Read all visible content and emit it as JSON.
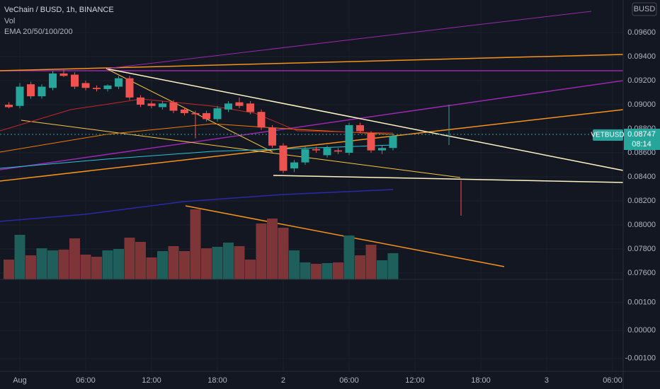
{
  "chart_data": {
    "type": "candlestick",
    "title": "VeChain / BUSD, 1h, BINANCE",
    "legend_lines": [
      "Vol",
      "EMA 20/50/100/200"
    ],
    "currency_label": "BUSD",
    "price_tag": {
      "symbol": "VETBUSD",
      "price": {
        "value": 0.08747,
        "label": "0.08747"
      },
      "countdown": "08:14"
    },
    "up_color": "#26a69a",
    "down_color": "#ef5350",
    "volume_up_color": "#1f5f5b",
    "volume_down_color": "#7d3538",
    "x": [
      -1,
      0,
      1,
      2,
      3,
      4,
      5,
      6,
      7,
      8,
      9,
      10,
      11,
      12,
      13,
      14,
      15,
      16,
      17,
      18,
      19,
      20,
      21,
      22,
      23,
      24,
      25,
      26,
      27,
      28,
      29,
      30,
      31,
      32,
      33,
      34
    ],
    "open": [
      0.09,
      0.0899,
      0.0917,
      0.0907,
      0.0914,
      0.0926,
      0.0925,
      0.0918,
      0.0914,
      0.0913,
      0.0915,
      0.0922,
      0.0906,
      0.0901,
      0.0898,
      0.0902,
      0.0896,
      0.0893,
      0.0893,
      0.0888,
      0.0896,
      0.0902,
      0.0901,
      0.0894,
      0.0881,
      0.0866,
      0.0847,
      0.0852,
      0.0863,
      0.0858,
      0.0862,
      0.086,
      0.0883,
      0.0876,
      0.0862,
      0.0864
    ],
    "high": [
      0.0902,
      0.0918,
      0.0919,
      0.0917,
      0.0928,
      0.0929,
      0.0927,
      0.092,
      0.0916,
      0.0917,
      0.0924,
      0.0924,
      0.0908,
      0.0903,
      0.0903,
      0.0904,
      0.0898,
      0.0895,
      0.0895,
      0.0899,
      0.0903,
      0.0906,
      0.0903,
      0.0896,
      0.0883,
      0.0868,
      0.0854,
      0.0865,
      0.0865,
      0.0866,
      0.0864,
      0.0885,
      0.0885,
      0.0878,
      0.0866,
      0.0876
    ],
    "low": [
      0.0897,
      0.0897,
      0.0905,
      0.0905,
      0.0912,
      0.0923,
      0.0913,
      0.0912,
      0.0911,
      0.0911,
      0.0913,
      0.0904,
      0.0898,
      0.0897,
      0.0896,
      0.0893,
      0.0891,
      0.0872,
      0.0886,
      0.0886,
      0.0894,
      0.0897,
      0.0892,
      0.0879,
      0.0864,
      0.0843,
      0.0844,
      0.085,
      0.086,
      0.0856,
      0.0859,
      0.0858,
      0.0876,
      0.086,
      0.0859,
      0.0862
    ],
    "close": [
      0.0898,
      0.0915,
      0.0907,
      0.0915,
      0.0926,
      0.0924,
      0.0915,
      0.0914,
      0.0913,
      0.0916,
      0.0922,
      0.0906,
      0.09,
      0.0899,
      0.0901,
      0.0895,
      0.0893,
      0.0892,
      0.0888,
      0.0897,
      0.0901,
      0.0899,
      0.0894,
      0.0881,
      0.0866,
      0.0845,
      0.0852,
      0.0863,
      0.0862,
      0.0864,
      0.0861,
      0.0883,
      0.0878,
      0.0862,
      0.0864,
      0.0874
    ],
    "volume": [
      28,
      63,
      34,
      44,
      41,
      42,
      58,
      35,
      32,
      41,
      43,
      59,
      53,
      31,
      40,
      47,
      40,
      99,
      44,
      46,
      52,
      47,
      28,
      79,
      86,
      73,
      41,
      24,
      22,
      23,
      24,
      62,
      34,
      49,
      27,
      37
    ],
    "vlim": [
      0,
      125
    ],
    "xlim": [
      -1.806,
      54.97
    ],
    "xticks": [
      {
        "value": 0,
        "label": "Aug"
      },
      {
        "value": 6,
        "label": "06:00"
      },
      {
        "value": 12,
        "label": "12:00"
      },
      {
        "value": 18,
        "label": "18:00"
      },
      {
        "value": 24,
        "label": "2"
      },
      {
        "value": 30,
        "label": "06:00"
      },
      {
        "value": 36,
        "label": "12:00"
      },
      {
        "value": 42,
        "label": "18:00"
      },
      {
        "value": 48,
        "label": "3"
      },
      {
        "value": 54,
        "label": "06:00"
      }
    ],
    "ylim": [
      0.07547,
      0.09871
    ],
    "yticks": [
      {
        "value": 0.096,
        "label": "0.09600"
      },
      {
        "value": 0.094,
        "label": "0.09400"
      },
      {
        "value": 0.092,
        "label": "0.09200"
      },
      {
        "value": 0.09,
        "label": "0.09000"
      },
      {
        "value": 0.088,
        "label": "0.08800"
      },
      {
        "value": 0.086,
        "label": "0.08600"
      },
      {
        "value": 0.084,
        "label": "0.08400"
      },
      {
        "value": 0.082,
        "label": "0.08200"
      },
      {
        "value": 0.08,
        "label": "0.08000"
      },
      {
        "value": 0.078,
        "label": "0.07800"
      },
      {
        "value": 0.076,
        "label": "0.07600"
      }
    ],
    "lower_ylim": [
      -0.00146,
      0.00183
    ],
    "lower_yticks": [
      {
        "value": 0.001,
        "label": "0.00100"
      },
      {
        "value": 0,
        "label": "0.00000"
      },
      {
        "value": -0.001,
        "label": "-0.00100"
      }
    ],
    "grid": true
  }
}
